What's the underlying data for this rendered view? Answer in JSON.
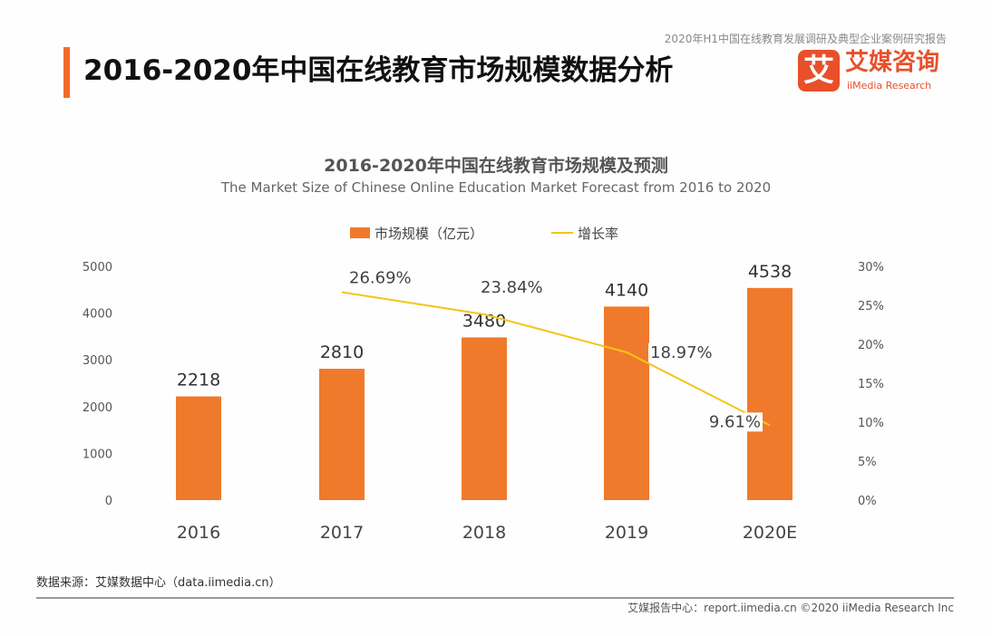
{
  "header": {
    "title": "2016-2020年中国在线教育市场规模数据分析",
    "report_name": "2020年H1中国在线教育发展调研及典型企业案例研究报告",
    "logo_mark": "艾",
    "logo_cn": "艾媒咨询",
    "logo_en": "iiMedia Research"
  },
  "chart_data": {
    "type": "bar+line",
    "title": "2016-2020年中国在线教育市场规模及预测",
    "subtitle": "The Market Size of Chinese Online Education Market Forecast from 2016 to 2020",
    "categories": [
      "2016",
      "2017",
      "2018",
      "2019",
      "2020E"
    ],
    "series": [
      {
        "name": "市场规模（亿元）",
        "type": "bar",
        "axis": "left",
        "values": [
          2218,
          2810,
          3480,
          4140,
          4538
        ],
        "labels": [
          "2218",
          "2810",
          "3480",
          "4140",
          "4538"
        ],
        "color": "#f07a2b"
      },
      {
        "name": "增长率",
        "type": "line",
        "axis": "right",
        "values": [
          null,
          26.69,
          23.84,
          18.97,
          9.61
        ],
        "labels": [
          "",
          "26.69%",
          "23.84%",
          "18.97%",
          "9.61%"
        ],
        "color": "#f5c518"
      }
    ],
    "left_axis": {
      "ylim": [
        0,
        5000
      ],
      "ticks": [
        "0",
        "1000",
        "2000",
        "3000",
        "4000",
        "5000"
      ]
    },
    "right_axis": {
      "ylim": [
        0,
        30
      ],
      "ticks": [
        "0%",
        "5%",
        "10%",
        "15%",
        "20%",
        "25%",
        "30%"
      ]
    },
    "legend": "top-center",
    "grid": false
  },
  "footer": {
    "source": "数据来源：艾媒数据中心（data.iimedia.cn）",
    "copyright": "艾媒报告中心：report.iimedia.cn  ©2020  iiMedia Research Inc"
  }
}
